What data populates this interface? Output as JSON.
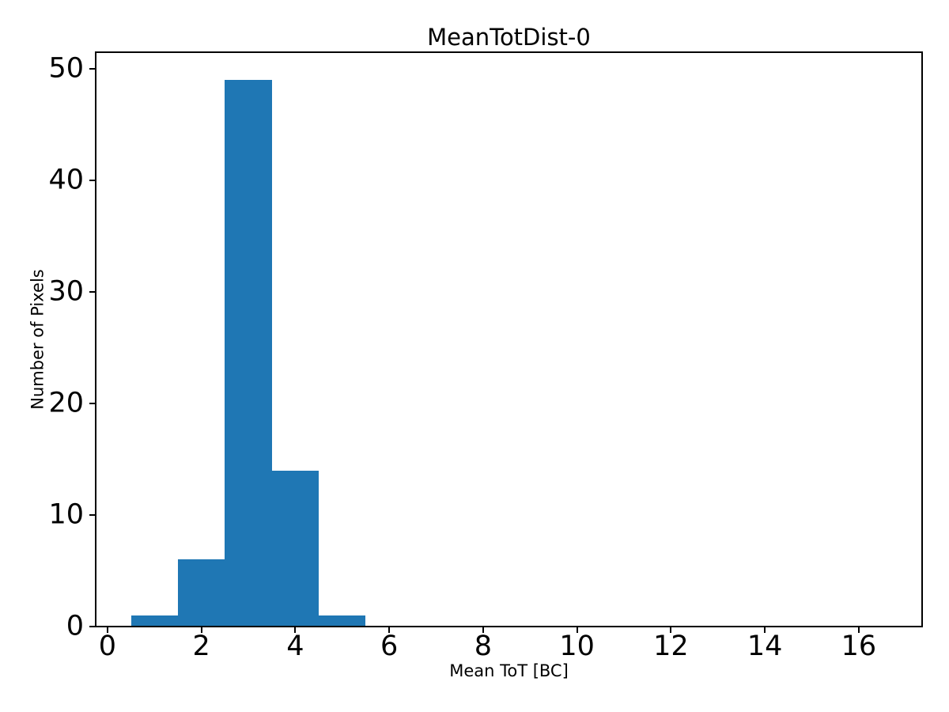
{
  "chart_data": {
    "type": "histogram",
    "title": "MeanTotDist-0",
    "xlabel": "Mean ToT [BC]",
    "ylabel": "Number of Pixels",
    "bar_color": "#1f77b4",
    "axis_color": "#000000",
    "background_color": "#ffffff",
    "bin_edges": [
      0.5,
      1.5,
      2.5,
      3.5,
      4.5,
      5.5
    ],
    "counts": [
      1,
      6,
      49,
      14,
      1
    ],
    "xticks": [
      0,
      2,
      4,
      6,
      8,
      10,
      12,
      14,
      16
    ],
    "yticks": [
      0,
      10,
      20,
      30,
      40,
      50
    ],
    "xlim": [
      -0.25,
      17.35
    ],
    "ylim": [
      0,
      51.5
    ],
    "grid": false,
    "legend": null
  }
}
